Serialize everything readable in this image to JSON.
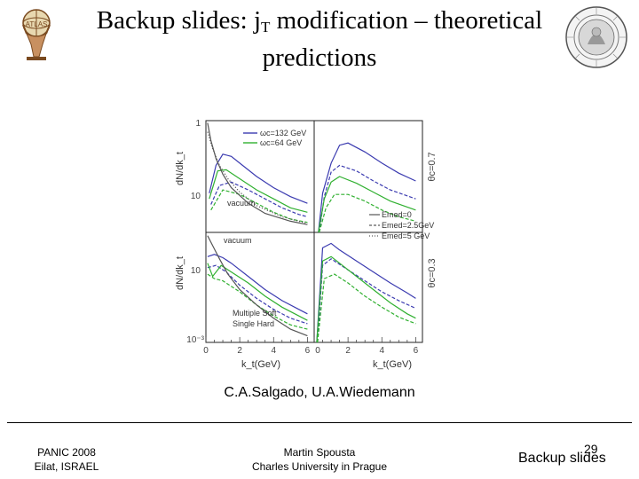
{
  "slide": {
    "title_main": "Backup slides: j",
    "title_sub": "T",
    "title_rest": " modification – theoretical predictions",
    "citation": "C.A.Salgado, U.A.Wiedemann",
    "footer": {
      "conf": "PANIC 2008",
      "location": "Eilat, ISRAEL",
      "author": "Martin Spousta",
      "institution": "Charles University in Prague",
      "section": "Backup slides",
      "page": "29"
    }
  },
  "chart_data": {
    "type": "line",
    "yaxis_label_top": "dN/dk_t",
    "yaxis_label_bottom": "dN/dk_t",
    "xlabel_left": "k_t(GeV)",
    "xlabel_right": "k_t(GeV)",
    "x_ticks_left": [
      "0",
      "2",
      "4",
      "6"
    ],
    "x_ticks_right": [
      "0",
      "2",
      "4",
      "6"
    ],
    "y_ticks_top": [
      "1",
      "10"
    ],
    "y_ticks_bottom": [
      "10",
      "10⁻³"
    ],
    "legend_top": [
      {
        "label": "ωc=132 GeV",
        "color": "#3b3bb0"
      },
      {
        "label": "ωc=64 GeV",
        "color": "#30b030"
      }
    ],
    "legend_energy": [
      {
        "label": "Emed=0",
        "style": "solid"
      },
      {
        "label": "Emed=2.5GeV",
        "style": "dashed"
      },
      {
        "label": "Emed=5 GeV",
        "style": "dotted"
      }
    ],
    "annotations": {
      "vacuum_top": "vacuum",
      "vacuum_bottom": "vacuum",
      "multiple_soft": "Multiple Soft",
      "single_hard": "Single Hard",
      "theta_top": "θc=0.7",
      "theta_bottom": "θc=0.3"
    },
    "panels": [
      {
        "name": "top-left",
        "series": [
          {
            "name": "ωc=132 GeV",
            "color": "#3b3bb0",
            "style": "solid",
            "x": [
              0.2,
              0.6,
              1.0,
              1.5,
              2.0,
              3.0,
              4.0,
              5.0,
              6.0
            ],
            "y": [
              0.35,
              0.6,
              0.7,
              0.68,
              0.62,
              0.5,
              0.4,
              0.32,
              0.26
            ]
          },
          {
            "name": "ωc=132 GeV",
            "color": "#3b3bb0",
            "style": "dashed",
            "x": [
              0.3,
              0.8,
              1.5,
              2.5,
              3.5,
              4.5,
              5.5,
              6.0
            ],
            "y": [
              0.25,
              0.42,
              0.45,
              0.38,
              0.3,
              0.22,
              0.16,
              0.14
            ]
          },
          {
            "name": "ωc=64 GeV",
            "color": "#30b030",
            "style": "solid",
            "x": [
              0.2,
              0.7,
              1.2,
              2.0,
              3.0,
              4.0,
              5.0,
              6.0
            ],
            "y": [
              0.3,
              0.55,
              0.56,
              0.48,
              0.38,
              0.3,
              0.22,
              0.18
            ]
          },
          {
            "name": "ωc=64 GeV",
            "color": "#30b030",
            "style": "dashed",
            "x": [
              0.3,
              1.0,
              2.0,
              3.0,
              4.0,
              5.0,
              6.0
            ],
            "y": [
              0.2,
              0.38,
              0.34,
              0.26,
              0.18,
              0.12,
              0.09
            ]
          },
          {
            "name": "vacuum",
            "color": "#555555",
            "style": "solid",
            "x": [
              0.1,
              0.3,
              0.6,
              1.0,
              1.5,
              2.5,
              3.5,
              5.0,
              6.0
            ],
            "y": [
              0.98,
              0.82,
              0.66,
              0.52,
              0.4,
              0.26,
              0.17,
              0.1,
              0.07
            ]
          },
          {
            "name": "vacuum",
            "color": "#555555",
            "style": "dotted",
            "x": [
              0.1,
              0.4,
              0.8,
              1.3,
              2.0,
              3.0,
              4.5,
              6.0
            ],
            "y": [
              0.9,
              0.75,
              0.6,
              0.48,
              0.36,
              0.24,
              0.14,
              0.08
            ]
          }
        ]
      },
      {
        "name": "top-right",
        "series": [
          {
            "name": "ωc=132 GeV",
            "color": "#3b3bb0",
            "style": "solid",
            "x": [
              0.25,
              0.5,
              1.0,
              1.5,
              2.0,
              3.0,
              4.0,
              5.0,
              6.0
            ],
            "y": [
              0.0,
              0.35,
              0.62,
              0.78,
              0.8,
              0.72,
              0.62,
              0.53,
              0.46
            ]
          },
          {
            "name": "ωc=132 GeV",
            "color": "#3b3bb0",
            "style": "dashed",
            "x": [
              0.3,
              0.6,
              1.0,
              1.5,
              2.5,
              3.5,
              4.5,
              6.0
            ],
            "y": [
              0.0,
              0.32,
              0.54,
              0.6,
              0.55,
              0.46,
              0.38,
              0.3
            ]
          },
          {
            "name": "ωc=64 GeV",
            "color": "#30b030",
            "style": "solid",
            "x": [
              0.25,
              0.6,
              1.0,
              1.5,
              2.5,
              3.5,
              4.5,
              6.0
            ],
            "y": [
              0.0,
              0.3,
              0.45,
              0.5,
              0.44,
              0.36,
              0.28,
              0.2
            ]
          },
          {
            "name": "ωc=64 GeV",
            "color": "#30b030",
            "style": "dashed",
            "x": [
              0.3,
              0.7,
              1.2,
              2.0,
              3.0,
              4.0,
              5.0,
              6.0
            ],
            "y": [
              0.0,
              0.22,
              0.34,
              0.34,
              0.28,
              0.2,
              0.14,
              0.1
            ]
          }
        ]
      },
      {
        "name": "bottom-left",
        "series": [
          {
            "name": "ωc=132 GeV",
            "color": "#3b3bb0",
            "style": "solid",
            "x": [
              0.1,
              0.5,
              1.0,
              1.5,
              2.5,
              3.5,
              4.5,
              5.5,
              6.0
            ],
            "y": [
              0.78,
              0.8,
              0.77,
              0.72,
              0.6,
              0.48,
              0.38,
              0.3,
              0.26
            ]
          },
          {
            "name": "ωc=132 GeV",
            "color": "#3b3bb0",
            "style": "dashed",
            "x": [
              0.1,
              0.6,
              1.2,
              2.0,
              3.0,
              4.0,
              5.0,
              6.0
            ],
            "y": [
              0.68,
              0.7,
              0.64,
              0.52,
              0.4,
              0.3,
              0.22,
              0.17
            ]
          },
          {
            "name": "ωc=64 GeV",
            "color": "#30b030",
            "style": "solid",
            "x": [
              0.1,
              0.4,
              0.9,
              1.5,
              2.5,
              3.5,
              4.5,
              5.5,
              6.0
            ],
            "y": [
              0.72,
              0.6,
              0.7,
              0.64,
              0.54,
              0.42,
              0.32,
              0.24,
              0.2
            ]
          },
          {
            "name": "ωc=64 GeV",
            "color": "#30b030",
            "style": "dashed",
            "x": [
              0.1,
              0.5,
              1.0,
              2.0,
              3.0,
              4.0,
              5.0,
              6.0
            ],
            "y": [
              0.62,
              0.58,
              0.56,
              0.46,
              0.34,
              0.24,
              0.16,
              0.12
            ]
          },
          {
            "name": "vacuum",
            "color": "#555555",
            "style": "solid",
            "x": [
              0.1,
              0.4,
              0.8,
              1.3,
              2.0,
              3.0,
              4.0,
              5.0,
              6.0
            ],
            "y": [
              0.97,
              0.88,
              0.76,
              0.62,
              0.48,
              0.34,
              0.22,
              0.12,
              0.06
            ]
          }
        ]
      },
      {
        "name": "bottom-right",
        "series": [
          {
            "name": "ωc=132 GeV",
            "color": "#3b3bb0",
            "style": "solid",
            "x": [
              0.15,
              0.5,
              1.0,
              1.5,
              2.5,
              3.5,
              4.5,
              5.5,
              6.0
            ],
            "y": [
              0.0,
              0.86,
              0.9,
              0.84,
              0.74,
              0.64,
              0.54,
              0.45,
              0.4
            ]
          },
          {
            "name": "ωc=132 GeV",
            "color": "#3b3bb0",
            "style": "dashed",
            "x": [
              0.2,
              0.5,
              1.0,
              2.0,
              3.0,
              4.0,
              5.0,
              6.0
            ],
            "y": [
              0.0,
              0.7,
              0.76,
              0.66,
              0.56,
              0.46,
              0.38,
              0.31
            ]
          },
          {
            "name": "ωc=64 GeV",
            "color": "#30b030",
            "style": "solid",
            "x": [
              0.15,
              0.5,
              1.0,
              1.5,
              2.5,
              3.5,
              4.5,
              5.5,
              6.0
            ],
            "y": [
              0.0,
              0.74,
              0.78,
              0.72,
              0.6,
              0.48,
              0.36,
              0.26,
              0.22
            ]
          },
          {
            "name": "ωc=64 GeV",
            "color": "#30b030",
            "style": "dashed",
            "x": [
              0.2,
              0.6,
              1.2,
              2.0,
              3.0,
              4.0,
              5.0,
              6.0
            ],
            "y": [
              0.0,
              0.58,
              0.62,
              0.54,
              0.42,
              0.32,
              0.23,
              0.17
            ]
          }
        ]
      }
    ]
  }
}
